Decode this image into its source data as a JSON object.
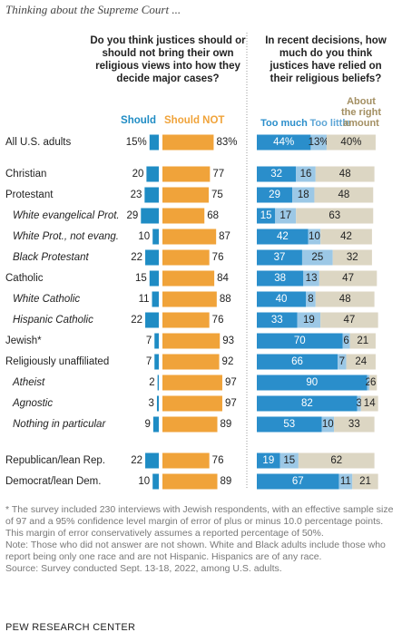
{
  "header": "Thinking about the Supreme Court ...",
  "chart_data": {
    "type": "bar",
    "categories": [
      "All U.S. adults",
      "Christian",
      "Protestant",
      "White evangelical Prot.",
      "White Prot., not evang.",
      "Black Protestant",
      "Catholic",
      "White Catholic",
      "Hispanic Catholic",
      "Jewish*",
      "Religiously unaffiliated",
      "Atheist",
      "Agnostic",
      "Nothing in particular",
      "Republican/lean Rep.",
      "Democrat/lean Dem."
    ],
    "indented": [
      false,
      false,
      false,
      true,
      true,
      true,
      false,
      true,
      true,
      false,
      false,
      true,
      true,
      true,
      false,
      false
    ],
    "panels": [
      {
        "type": "diverging",
        "title": "Do you think justices should or should not bring their own religious views into how they decide major cases?",
        "series": [
          {
            "name": "Should",
            "color": "#1f8cc4",
            "values": [
              15,
              20,
              23,
              29,
              10,
              22,
              15,
              11,
              22,
              7,
              7,
              2,
              3,
              9,
              22,
              10
            ],
            "value_labels": [
              "15%",
              "20",
              "23",
              "29",
              "10",
              "22",
              "15",
              "11",
              "22",
              "7",
              "7",
              "2",
              "3",
              "9",
              "22",
              "10"
            ]
          },
          {
            "name": "Should NOT",
            "color": "#f0a33a",
            "values": [
              83,
              77,
              75,
              68,
              87,
              76,
              84,
              88,
              76,
              93,
              92,
              97,
              97,
              89,
              76,
              89
            ],
            "value_labels": [
              "83%",
              "77",
              "75",
              "68",
              "87",
              "76",
              "84",
              "88",
              "76",
              "93",
              "92",
              "97",
              "97",
              "89",
              "76",
              "89"
            ]
          }
        ]
      },
      {
        "type": "stacked",
        "title": "In recent decisions, how much do you think justices have relied on their religious beliefs?",
        "series": [
          {
            "name": "Too much",
            "color": "#2a8ecb",
            "values": [
              44,
              32,
              29,
              15,
              42,
              37,
              38,
              40,
              33,
              70,
              66,
              90,
              82,
              53,
              19,
              67
            ],
            "value_labels": [
              "44%",
              "32",
              "29",
              "15",
              "42",
              "37",
              "38",
              "40",
              "33",
              "70",
              "66",
              "90",
              "82",
              "53",
              "19",
              "67"
            ]
          },
          {
            "name": "Too little",
            "color": "#9cc8e6",
            "values": [
              13,
              16,
              18,
              17,
              10,
              25,
              13,
              8,
              19,
              6,
              7,
              2,
              3,
              10,
              15,
              11
            ],
            "value_labels": [
              "13%",
              "16",
              "18",
              "17",
              "10",
              "25",
              "13",
              "8",
              "19",
              "6",
              "7",
              "2",
              "3",
              "10",
              "15",
              "11"
            ]
          },
          {
            "name": "About the right amount",
            "color": "#dcd6c3",
            "values": [
              40,
              48,
              48,
              63,
              42,
              32,
              47,
              48,
              47,
              21,
              24,
              6,
              14,
              33,
              62,
              21
            ],
            "value_labels": [
              "40%",
              "48",
              "48",
              "63",
              "42",
              "32",
              "47",
              "48",
              "47",
              "21",
              "24",
              "6",
              "14",
              "33",
              "62",
              "21"
            ]
          }
        ]
      }
    ]
  },
  "notes": [
    "* The survey included 230 interviews with Jewish respondents, with an effective sample size of 97 and a 95% confidence level margin of error of plus or minus 10.0 percentage points. This margin of error conservatively assumes a reported percentage of 50%.",
    "Note: Those who did not answer are not shown. White and Black adults include those who report being only one race and are not Hispanic. Hispanics are of any race.",
    "Source: Survey conducted Sept. 13-18, 2022, among U.S. adults."
  ],
  "organization": "PEW RESEARCH CENTER"
}
